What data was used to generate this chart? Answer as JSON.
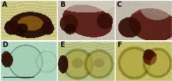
{
  "figsize": [
    2.5,
    1.19
  ],
  "dpi": 100,
  "nrows": 2,
  "ncols": 3,
  "labels": [
    "A",
    "B",
    "C",
    "D",
    "E",
    "F"
  ],
  "label_color": "#000000",
  "label_fontsize": 7,
  "label_fontweight": "bold",
  "panel_bgs": {
    "A": [
      210,
      205,
      140
    ],
    "B": [
      200,
      195,
      175
    ],
    "C": [
      195,
      190,
      175
    ],
    "D": [
      175,
      215,
      190
    ],
    "E": [
      190,
      200,
      140
    ],
    "F": [
      195,
      195,
      110
    ]
  },
  "border_color": "#ffffff",
  "scale_bar_color": [
    0,
    0,
    0
  ]
}
